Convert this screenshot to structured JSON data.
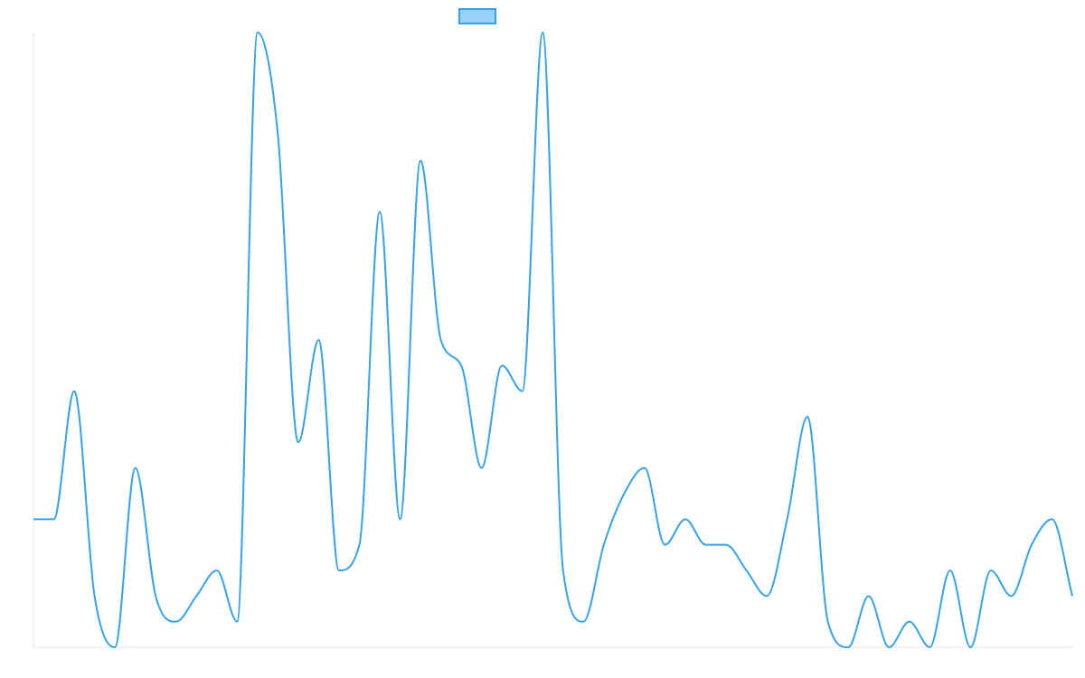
{
  "chart_data": {
    "type": "line",
    "title": "",
    "xlabel": "",
    "ylabel": "",
    "legend": {
      "placement": "top-center",
      "entries": [
        {
          "label": ""
        }
      ]
    },
    "grid": false,
    "x_ticks_visible": false,
    "y_ticks_visible": false,
    "ylim": [
      0,
      24
    ],
    "series": [
      {
        "name": "",
        "color": "#36a2eb",
        "legend_fill": "#9ad0f5",
        "values": [
          5,
          5,
          10,
          2,
          0,
          7,
          2,
          1,
          2,
          3,
          1,
          24,
          20,
          8,
          12,
          3,
          4,
          17,
          5,
          19,
          12,
          11,
          7,
          11,
          10,
          24,
          3,
          1,
          4,
          6,
          7,
          4,
          5,
          4,
          4,
          3,
          2,
          5,
          9,
          1,
          0,
          2,
          0,
          1,
          0,
          3,
          0,
          3,
          2,
          4,
          5,
          2
        ]
      }
    ]
  }
}
